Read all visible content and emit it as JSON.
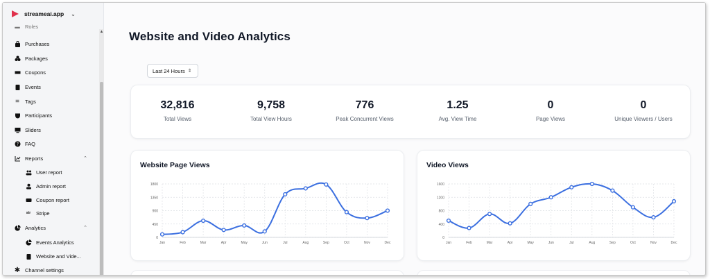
{
  "sidebar": {
    "brand": "streameai.app",
    "clipped_item": "Roles",
    "items": [
      {
        "label": "Purchases",
        "icon": "bag-icon"
      },
      {
        "label": "Packages",
        "icon": "packages-icon"
      },
      {
        "label": "Coupons",
        "icon": "ticket-icon"
      },
      {
        "label": "Events",
        "icon": "clipboard-icon"
      },
      {
        "label": "Tags",
        "icon": "equals-icon"
      },
      {
        "label": "Participants",
        "icon": "shield-icon"
      },
      {
        "label": "Sliders",
        "icon": "monitor-icon"
      },
      {
        "label": "FAQ",
        "icon": "help-icon"
      },
      {
        "label": "Reports",
        "icon": "chart-icon"
      },
      {
        "label": "User report",
        "icon": "users-icon"
      },
      {
        "label": "Admin report",
        "icon": "user-icon"
      },
      {
        "label": "Coupon report",
        "icon": "ticket-icon"
      },
      {
        "label": "Stripe",
        "icon": "stripe-icon"
      },
      {
        "label": "Analytics",
        "icon": "pie-icon"
      },
      {
        "label": "Events Analytics",
        "icon": "pie-icon"
      },
      {
        "label": "Website and Vide...",
        "icon": "clipboard-icon"
      },
      {
        "label": "Channel settings",
        "icon": "gear-icon"
      }
    ]
  },
  "main": {
    "title": "Website and Video Analytics",
    "range": "Last 24 Hours"
  },
  "stats": [
    {
      "value": "32,816",
      "label": "Total Views"
    },
    {
      "value": "9,758",
      "label": "Total View Hours"
    },
    {
      "value": "776",
      "label": "Peak Concurrent Views"
    },
    {
      "value": "1.25",
      "label": "Avg. View Time"
    },
    {
      "value": "0",
      "label": "Page Views"
    },
    {
      "value": "0",
      "label": "Unique Viewers / Users"
    }
  ],
  "colors": {
    "accent": "#3b6fe0",
    "brand": "#e0314b"
  },
  "chart_data": [
    {
      "type": "line",
      "title": "Website Page Views",
      "categories": [
        "Jan",
        "Feb",
        "Mar",
        "Apr",
        "May",
        "Jun",
        "Jul",
        "Aug",
        "Sep",
        "Oct",
        "Nov",
        "Dec"
      ],
      "values": [
        100,
        175,
        560,
        250,
        400,
        200,
        1450,
        1650,
        1780,
        850,
        650,
        900
      ],
      "yticks": [
        "0",
        "450",
        "900",
        "1350",
        "1800"
      ],
      "ylim": [
        0,
        1800
      ],
      "grid": true
    },
    {
      "type": "line",
      "title": "Video Views",
      "categories": [
        "Jan",
        "Feb",
        "Mar",
        "Apr",
        "May",
        "Jun",
        "Jul",
        "Aug",
        "Sep",
        "Oct",
        "Nov",
        "Dec"
      ],
      "values": [
        500,
        280,
        700,
        420,
        1000,
        1200,
        1500,
        1600,
        1400,
        900,
        600,
        1080
      ],
      "yticks": [
        "0",
        "400",
        "800",
        "1200",
        "1600"
      ],
      "ylim": [
        0,
        1600
      ],
      "grid": true
    }
  ]
}
